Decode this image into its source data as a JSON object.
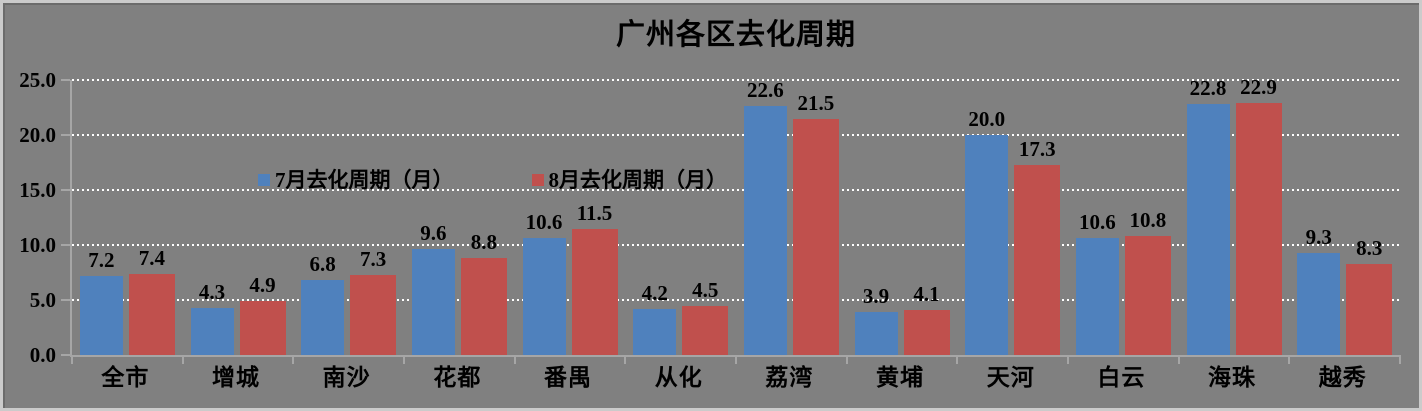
{
  "title": "广州各区去化周期",
  "chart_data": {
    "type": "bar",
    "title": "广州各区去化周期",
    "categories": [
      "全市",
      "增城",
      "南沙",
      "花都",
      "番禺",
      "从化",
      "荔湾",
      "黄埔",
      "天河",
      "白云",
      "海珠",
      "越秀"
    ],
    "series": [
      {
        "name": "7月去化周期（月）",
        "color": "#4F81BD",
        "values": [
          7.2,
          4.3,
          6.8,
          9.6,
          10.6,
          4.2,
          22.6,
          3.9,
          20.0,
          10.6,
          22.8,
          9.3
        ]
      },
      {
        "name": "8月去化周期（月）",
        "color": "#C0504D",
        "values": [
          7.4,
          4.9,
          7.3,
          8.8,
          11.5,
          4.5,
          21.5,
          4.1,
          17.3,
          10.8,
          22.9,
          8.3
        ]
      }
    ],
    "xlabel": "",
    "ylabel": "",
    "ylim": [
      0,
      25
    ],
    "yticks": [
      "0.0",
      "5.0",
      "10.0",
      "15.0",
      "20.0",
      "25.0"
    ],
    "data_label_format": "one-decimal",
    "grid": "horizontal-white-dotted",
    "legend_position": "top-inside-plot",
    "background_color": "#808080",
    "axis_line_color": "#A6A6A6",
    "text_color": "#000000"
  }
}
